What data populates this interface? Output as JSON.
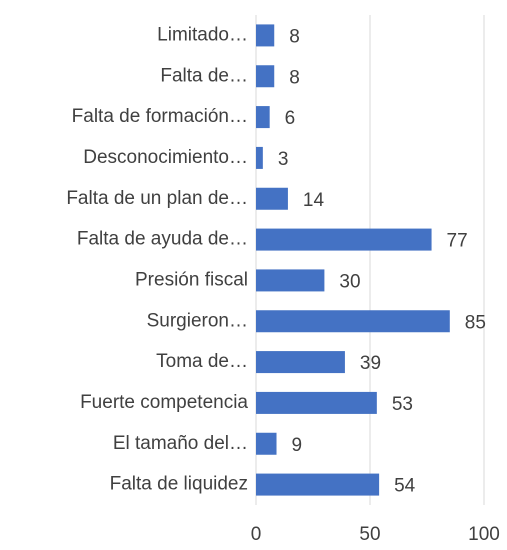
{
  "chart_data": {
    "type": "bar",
    "orientation": "horizontal",
    "categories": [
      "Limitado…",
      "Falta de…",
      "Falta de formación…",
      "Desconocimiento…",
      "Falta de un plan de…",
      "Falta de ayuda de…",
      "Presión fiscal",
      "Surgieron…",
      "Toma de…",
      "Fuerte competencia",
      "El tamaño del…",
      "Falta de liquidez"
    ],
    "values": [
      8,
      8,
      6,
      3,
      14,
      77,
      30,
      85,
      39,
      53,
      9,
      54
    ],
    "color": "#4472c4",
    "xlim": [
      0,
      100
    ],
    "xticks": [
      0,
      50,
      100
    ],
    "grid": true
  }
}
